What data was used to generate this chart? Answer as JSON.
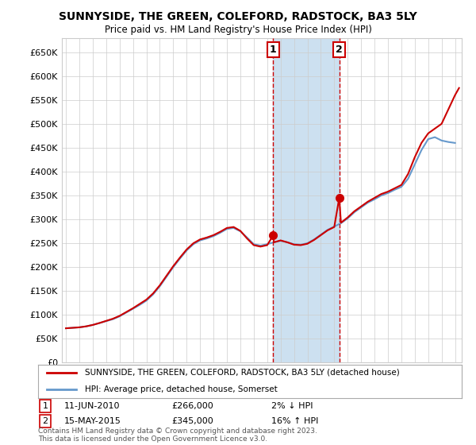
{
  "title": "SUNNYSIDE, THE GREEN, COLEFORD, RADSTOCK, BA3 5LY",
  "subtitle": "Price paid vs. HM Land Registry's House Price Index (HPI)",
  "ylabel_values": [
    0,
    50000,
    100000,
    150000,
    200000,
    250000,
    300000,
    350000,
    400000,
    450000,
    500000,
    550000,
    600000,
    650000
  ],
  "ylim": [
    0,
    680000
  ],
  "xlim_start": 1994.7,
  "xlim_end": 2024.5,
  "transaction1_date": 2010.44,
  "transaction1_price": 266000,
  "transaction1_label": "1",
  "transaction2_date": 2015.37,
  "transaction2_price": 345000,
  "transaction2_label": "2",
  "legend_line1": "SUNNYSIDE, THE GREEN, COLEFORD, RADSTOCK, BA3 5LY (detached house)",
  "legend_line2": "HPI: Average price, detached house, Somerset",
  "ann1_date": "11-JUN-2010",
  "ann1_price": "£266,000",
  "ann1_hpi": "2% ↓ HPI",
  "ann2_date": "15-MAY-2015",
  "ann2_price": "£345,000",
  "ann2_hpi": "16% ↑ HPI",
  "footer": "Contains HM Land Registry data © Crown copyright and database right 2023.\nThis data is licensed under the Open Government Licence v3.0.",
  "line_color_red": "#cc0000",
  "line_color_blue": "#6699cc",
  "shade_color": "#cce0f0",
  "grid_color": "#cccccc",
  "background_color": "#ffffff",
  "years_hpi": [
    1995,
    1995.5,
    1996,
    1996.5,
    1997,
    1997.5,
    1998,
    1998.5,
    1999,
    1999.5,
    2000,
    2000.5,
    2001,
    2001.5,
    2002,
    2002.5,
    2003,
    2003.5,
    2004,
    2004.5,
    2005,
    2005.5,
    2006,
    2006.5,
    2007,
    2007.5,
    2008,
    2008.5,
    2009,
    2009.5,
    2010,
    2010.5,
    2011,
    2011.5,
    2012,
    2012.5,
    2013,
    2013.5,
    2014,
    2014.5,
    2015,
    2015.5,
    2016,
    2016.5,
    2017,
    2017.5,
    2018,
    2018.5,
    2019,
    2019.5,
    2020,
    2020.5,
    2021,
    2021.5,
    2022,
    2022.5,
    2023,
    2023.5,
    2024
  ],
  "hpi_values": [
    72000,
    73000,
    74000,
    76000,
    79000,
    83000,
    87000,
    91000,
    97000,
    105000,
    113000,
    121000,
    130000,
    143000,
    160000,
    180000,
    200000,
    218000,
    235000,
    248000,
    256000,
    260000,
    265000,
    272000,
    280000,
    282000,
    275000,
    262000,
    248000,
    245000,
    248000,
    252000,
    255000,
    252000,
    248000,
    247000,
    250000,
    258000,
    268000,
    278000,
    285000,
    292000,
    302000,
    315000,
    325000,
    335000,
    342000,
    350000,
    355000,
    362000,
    368000,
    385000,
    415000,
    445000,
    468000,
    472000,
    465000,
    462000,
    460000
  ],
  "years_red": [
    1995,
    1995.5,
    1996,
    1996.5,
    1997,
    1997.5,
    1998,
    1998.5,
    1999,
    1999.5,
    2000,
    2000.5,
    2001,
    2001.5,
    2002,
    2002.5,
    2003,
    2003.5,
    2004,
    2004.5,
    2005,
    2005.5,
    2006,
    2006.5,
    2007,
    2007.5,
    2008,
    2008.5,
    2009,
    2009.5,
    2010,
    2010.44,
    2010.5,
    2011,
    2011.5,
    2012,
    2012.5,
    2013,
    2013.5,
    2014,
    2014.5,
    2015,
    2015.37,
    2015.5,
    2016,
    2016.5,
    2017,
    2017.5,
    2018,
    2018.5,
    2019,
    2019.5,
    2020,
    2020.5,
    2021,
    2021.5,
    2022,
    2022.5,
    2023,
    2023.5,
    2024,
    2024.3
  ],
  "red_values": [
    72000,
    73000,
    74000,
    76000,
    79000,
    83000,
    87500,
    92000,
    98000,
    106000,
    114000,
    123000,
    132000,
    145000,
    162000,
    182000,
    202000,
    220000,
    237000,
    250000,
    258000,
    262000,
    267000,
    274000,
    282000,
    284000,
    276000,
    260000,
    246000,
    243000,
    246000,
    266000,
    252000,
    256000,
    252000,
    247000,
    246000,
    249000,
    257000,
    267000,
    277000,
    284000,
    345000,
    293000,
    304000,
    317000,
    327000,
    337000,
    345000,
    353000,
    358000,
    365000,
    372000,
    395000,
    430000,
    460000,
    480000,
    490000,
    500000,
    530000,
    560000,
    575000
  ]
}
